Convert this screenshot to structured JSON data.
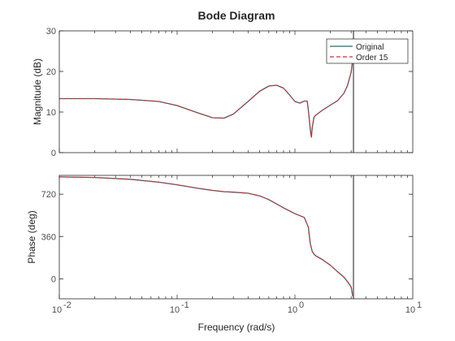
{
  "chart_data": {
    "type": "line",
    "title": "Bode Diagram",
    "xlabel": "Frequency (rad/s)",
    "xscale": "log",
    "xlim": [
      0.01,
      10
    ],
    "xticks": [
      {
        "value": 0.01,
        "base": "10",
        "exp": "-2"
      },
      {
        "value": 0.1,
        "base": "10",
        "exp": "-1"
      },
      {
        "value": 1,
        "base": "10",
        "exp": "0"
      },
      {
        "value": 10,
        "base": "10",
        "exp": "1"
      }
    ],
    "grid": false,
    "legend": {
      "placement": "top-right",
      "entries": [
        "Original",
        "Order 15"
      ]
    },
    "colors": {
      "Original": "#1f6f6f",
      "Order 15": "#e8242c",
      "marker": "#808080",
      "axes": "#262626"
    },
    "marker_line_x": 3.14,
    "panels": [
      {
        "ylabel": "Magnitude (dB)",
        "ylim": [
          0,
          30
        ],
        "yticks": [
          0,
          10,
          20,
          30
        ],
        "series": [
          {
            "name": "Original",
            "style": "solid",
            "x": [
              0.01,
              0.02,
              0.04,
              0.07,
              0.1,
              0.15,
              0.2,
              0.25,
              0.3,
              0.4,
              0.5,
              0.6,
              0.7,
              0.8,
              0.9,
              1.0,
              1.1,
              1.2,
              1.27,
              1.3,
              1.33,
              1.36,
              1.38,
              1.4,
              1.45,
              1.5,
              1.7,
              2.0,
              2.3,
              2.6,
              2.8,
              3.0,
              3.1
            ],
            "values": [
              13.3,
              13.3,
              13.1,
              12.6,
              11.6,
              9.8,
              8.6,
              8.5,
              9.5,
              12.6,
              15.1,
              16.4,
              16.6,
              15.9,
              14.2,
              12.6,
              12.2,
              12.7,
              12.7,
              10.5,
              7.5,
              4.8,
              3.8,
              6.0,
              8.7,
              9.2,
              10.4,
              11.7,
              12.8,
              14.6,
              16.6,
              19.8,
              23.0
            ]
          },
          {
            "name": "Order 15",
            "style": "dashed",
            "x": [
              0.01,
              0.02,
              0.04,
              0.07,
              0.1,
              0.15,
              0.2,
              0.25,
              0.3,
              0.4,
              0.5,
              0.6,
              0.7,
              0.8,
              0.9,
              1.0,
              1.1,
              1.2,
              1.27,
              1.3,
              1.33,
              1.36,
              1.38,
              1.4,
              1.45,
              1.5,
              1.7,
              2.0,
              2.3,
              2.6,
              2.8,
              3.0,
              3.1
            ],
            "values": [
              13.3,
              13.3,
              13.1,
              12.6,
              11.6,
              9.8,
              8.6,
              8.5,
              9.5,
              12.6,
              15.1,
              16.4,
              16.6,
              15.9,
              14.2,
              12.6,
              12.2,
              12.7,
              12.7,
              10.5,
              7.5,
              4.8,
              3.8,
              6.0,
              8.7,
              9.2,
              10.4,
              11.7,
              12.8,
              14.6,
              16.6,
              19.8,
              23.0
            ]
          }
        ]
      },
      {
        "ylabel": "Phase (deg)",
        "ylim": [
          -170,
          880
        ],
        "yticks": [
          0,
          360,
          720
        ],
        "series": [
          {
            "name": "Original",
            "style": "solid",
            "x": [
              0.01,
              0.02,
              0.04,
              0.07,
              0.1,
              0.15,
              0.2,
              0.25,
              0.3,
              0.4,
              0.5,
              0.6,
              0.8,
              1.0,
              1.2,
              1.3,
              1.35,
              1.4,
              1.45,
              1.5,
              1.7,
              2.0,
              2.3,
              2.6,
              2.8,
              3.0,
              3.1
            ],
            "values": [
              867,
              862,
              847,
              822,
              800,
              770,
              752,
              741,
              737,
              728,
              706,
              674,
              604,
              554,
              522,
              440,
              300,
              235,
              210,
              196,
              165,
              115,
              60,
              15,
              -25,
              -70,
              -150
            ]
          },
          {
            "name": "Order 15",
            "style": "dashed",
            "x": [
              0.01,
              0.02,
              0.04,
              0.07,
              0.1,
              0.15,
              0.2,
              0.25,
              0.3,
              0.4,
              0.5,
              0.6,
              0.8,
              1.0,
              1.2,
              1.3,
              1.35,
              1.4,
              1.45,
              1.5,
              1.7,
              2.0,
              2.3,
              2.6,
              2.8,
              3.0,
              3.1
            ],
            "values": [
              867,
              862,
              847,
              822,
              800,
              770,
              752,
              741,
              737,
              728,
              706,
              674,
              604,
              554,
              522,
              440,
              300,
              235,
              210,
              196,
              165,
              115,
              60,
              15,
              -25,
              -70,
              -150
            ]
          }
        ]
      }
    ]
  }
}
